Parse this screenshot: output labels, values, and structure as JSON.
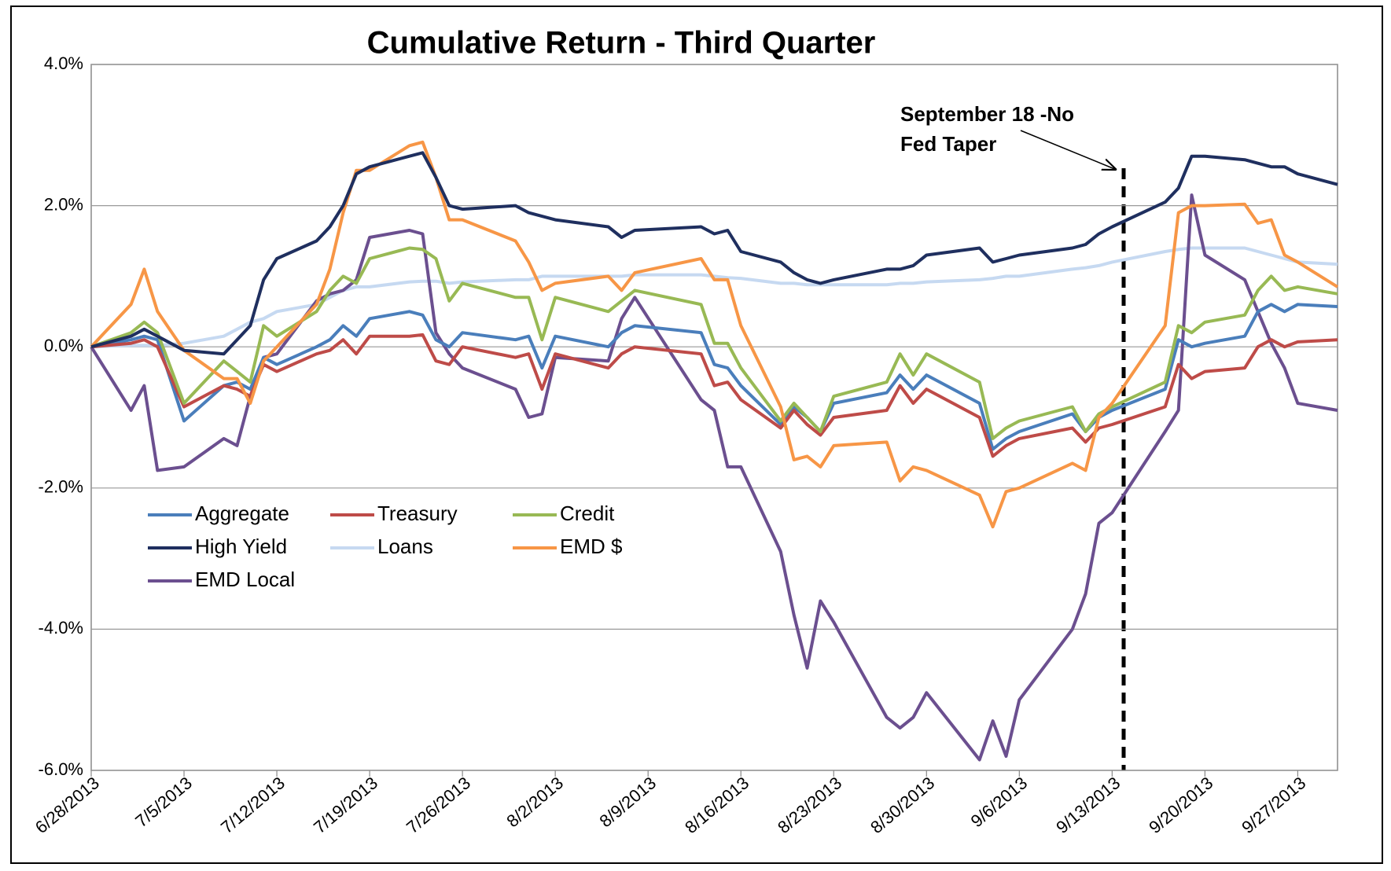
{
  "chart_data": {
    "type": "line",
    "title": "Cumulative Return - Third Quarter",
    "x": [
      "6/28/2013",
      "7/1/2013",
      "7/2/2013",
      "7/3/2013",
      "7/5/2013",
      "7/8/2013",
      "7/9/2013",
      "7/10/2013",
      "7/11/2013",
      "7/12/2013",
      "7/15/2013",
      "7/16/2013",
      "7/17/2013",
      "7/18/2013",
      "7/19/2013",
      "7/22/2013",
      "7/23/2013",
      "7/24/2013",
      "7/25/2013",
      "7/26/2013",
      "7/30/2013",
      "7/31/2013",
      "8/1/2013",
      "8/2/2013",
      "8/6/2013",
      "8/7/2013",
      "8/8/2013",
      "8/13/2013",
      "8/14/2013",
      "8/15/2013",
      "8/16/2013",
      "8/19/2013",
      "8/20/2013",
      "8/21/2013",
      "8/22/2013",
      "8/23/2013",
      "8/27/2013",
      "8/28/2013",
      "8/29/2013",
      "8/30/2013",
      "9/3/2013",
      "9/4/2013",
      "9/5/2013",
      "9/6/2013",
      "9/10/2013",
      "9/11/2013",
      "9/12/2013",
      "9/13/2013",
      "9/17/2013",
      "9/18/2013",
      "9/19/2013",
      "9/20/2013",
      "9/23/2013",
      "9/24/2013",
      "9/25/2013",
      "9/26/2013",
      "9/27/2013",
      "9/30/2013"
    ],
    "series": [
      {
        "name": "Aggregate",
        "color": "#4a7ebb",
        "values": [
          0,
          0.1,
          0.15,
          0.1,
          -1.05,
          -0.55,
          -0.5,
          -0.6,
          -0.15,
          -0.25,
          0,
          0.1,
          0.3,
          0.15,
          0.4,
          0.5,
          0.45,
          0.1,
          0,
          0.2,
          0.1,
          0.15,
          -0.3,
          0.15,
          0,
          0.2,
          0.3,
          0.2,
          -0.25,
          -0.3,
          -0.55,
          -1.1,
          -0.85,
          -1,
          -1.2,
          -0.8,
          -0.65,
          -0.4,
          -0.6,
          -0.4,
          -0.8,
          -1.45,
          -1.3,
          -1.2,
          -0.95,
          -1.2,
          -1,
          -0.9,
          -0.6,
          0.1,
          0,
          0.05,
          0.15,
          0.5,
          0.6,
          0.5,
          0.6,
          0.57
        ]
      },
      {
        "name": "Treasury",
        "color": "#be4b48",
        "values": [
          0,
          0.05,
          0.1,
          0,
          -0.85,
          -0.55,
          -0.6,
          -0.7,
          -0.25,
          -0.35,
          -0.1,
          -0.05,
          0.1,
          -0.1,
          0.15,
          0.15,
          0.17,
          -0.2,
          -0.25,
          0,
          -0.15,
          -0.1,
          -0.6,
          -0.1,
          -0.3,
          -0.1,
          0,
          -0.1,
          -0.55,
          -0.5,
          -0.75,
          -1.15,
          -0.9,
          -1.1,
          -1.25,
          -1,
          -0.9,
          -0.55,
          -0.8,
          -0.6,
          -1,
          -1.55,
          -1.4,
          -1.3,
          -1.15,
          -1.35,
          -1.15,
          -1.1,
          -0.85,
          -0.25,
          -0.45,
          -0.35,
          -0.3,
          0,
          0.1,
          0,
          0.07,
          0.1
        ]
      },
      {
        "name": "Credit",
        "color": "#98b954",
        "values": [
          0,
          0.2,
          0.35,
          0.2,
          -0.8,
          -0.2,
          -0.35,
          -0.5,
          0.3,
          0.15,
          0.5,
          0.8,
          1,
          0.9,
          1.25,
          1.4,
          1.38,
          1.25,
          0.65,
          0.9,
          0.7,
          0.7,
          0.1,
          0.7,
          0.5,
          0.65,
          0.8,
          0.6,
          0.05,
          0.05,
          -0.3,
          -1.05,
          -0.8,
          -1,
          -1.2,
          -0.7,
          -0.5,
          -0.1,
          -0.4,
          -0.1,
          -0.5,
          -1.3,
          -1.15,
          -1.05,
          -0.85,
          -1.2,
          -0.95,
          -0.85,
          -0.5,
          0.3,
          0.2,
          0.35,
          0.45,
          0.8,
          1,
          0.8,
          0.85,
          0.75
        ]
      },
      {
        "name": "High Yield",
        "color": "#1f2f5f",
        "values": [
          0,
          0.15,
          0.25,
          0.15,
          -0.05,
          -0.1,
          0.1,
          0.3,
          0.95,
          1.25,
          1.5,
          1.7,
          2,
          2.45,
          2.55,
          2.7,
          2.75,
          2.4,
          2,
          1.95,
          2,
          1.9,
          1.85,
          1.8,
          1.7,
          1.55,
          1.65,
          1.7,
          1.6,
          1.65,
          1.35,
          1.2,
          1.05,
          0.95,
          0.9,
          0.95,
          1.1,
          1.1,
          1.15,
          1.3,
          1.4,
          1.2,
          1.25,
          1.3,
          1.4,
          1.45,
          1.6,
          1.7,
          2.05,
          2.25,
          2.7,
          2.7,
          2.65,
          2.6,
          2.55,
          2.55,
          2.45,
          2.3
        ]
      },
      {
        "name": "Loans",
        "color": "#c6d9f1",
        "values": [
          0,
          0.02,
          0.02,
          0.02,
          0.05,
          0.15,
          0.25,
          0.35,
          0.4,
          0.5,
          0.6,
          0.7,
          0.8,
          0.85,
          0.85,
          0.92,
          0.93,
          0.93,
          0.9,
          0.92,
          0.95,
          0.95,
          1,
          1,
          1,
          1,
          1.02,
          1.02,
          1,
          0.98,
          0.97,
          0.9,
          0.9,
          0.88,
          0.88,
          0.88,
          0.88,
          0.9,
          0.9,
          0.92,
          0.95,
          0.97,
          1,
          1,
          1.1,
          1.12,
          1.15,
          1.2,
          1.35,
          1.38,
          1.4,
          1.4,
          1.4,
          1.35,
          1.3,
          1.25,
          1.2,
          1.17
        ]
      },
      {
        "name": "EMD $",
        "color": "#f79646",
        "values": [
          0,
          0.6,
          1.1,
          0.5,
          -0.05,
          -0.45,
          -0.45,
          -0.8,
          -0.2,
          0,
          0.6,
          1.1,
          1.9,
          2.5,
          2.5,
          2.85,
          2.9,
          2.4,
          1.8,
          1.8,
          1.5,
          1.2,
          0.8,
          0.9,
          1,
          0.8,
          1.05,
          1.25,
          0.95,
          0.95,
          0.3,
          -0.85,
          -1.6,
          -1.55,
          -1.7,
          -1.4,
          -1.35,
          -1.9,
          -1.7,
          -1.75,
          -2.1,
          -2.55,
          -2.05,
          -2,
          -1.65,
          -1.75,
          -1,
          -0.8,
          0.3,
          1.9,
          2,
          2,
          2.02,
          1.75,
          1.8,
          1.3,
          1.2,
          0.85
        ]
      },
      {
        "name": "EMD Local",
        "color": "#6b4f8f",
        "values": [
          0,
          -0.9,
          -0.55,
          -1.75,
          -1.7,
          -1.3,
          -1.4,
          -0.7,
          -0.15,
          -0.1,
          0.65,
          0.75,
          0.8,
          0.95,
          1.55,
          1.65,
          1.6,
          0.2,
          -0.1,
          -0.3,
          -0.6,
          -1,
          -0.95,
          -0.15,
          -0.2,
          0.4,
          0.7,
          -0.75,
          -0.9,
          -1.7,
          -1.7,
          -2.9,
          -3.8,
          -4.55,
          -3.6,
          -3.9,
          -5.25,
          -5.4,
          -5.25,
          -4.9,
          -5.85,
          -5.3,
          -5.8,
          -5,
          -4,
          -3.5,
          -2.5,
          -2.35,
          -1.2,
          -0.9,
          2.15,
          1.3,
          0.95,
          0.5,
          0.05,
          -0.3,
          -0.8,
          -0.9
        ]
      }
    ],
    "xlim": [
      "6/28/2013",
      "9/30/2013"
    ],
    "xticks": [
      "6/28/2013",
      "7/5/2013",
      "7/12/2013",
      "7/19/2013",
      "7/26/2013",
      "8/2/2013",
      "8/9/2013",
      "8/16/2013",
      "8/23/2013",
      "8/30/2013",
      "9/6/2013",
      "9/13/2013",
      "9/20/2013",
      "9/27/2013"
    ],
    "ylim": [
      -6,
      4
    ],
    "yticks": [
      {
        "value": -6,
        "label": "-6.0%"
      },
      {
        "value": -4,
        "label": "-4.0%"
      },
      {
        "value": -2,
        "label": "-2.0%"
      },
      {
        "value": 0,
        "label": "0.0%"
      },
      {
        "value": 2,
        "label": "2.0%"
      },
      {
        "value": 4,
        "label": "4.0%"
      }
    ],
    "grid": true,
    "annotation": [
      "September 18 -No",
      "Fed Taper"
    ]
  }
}
